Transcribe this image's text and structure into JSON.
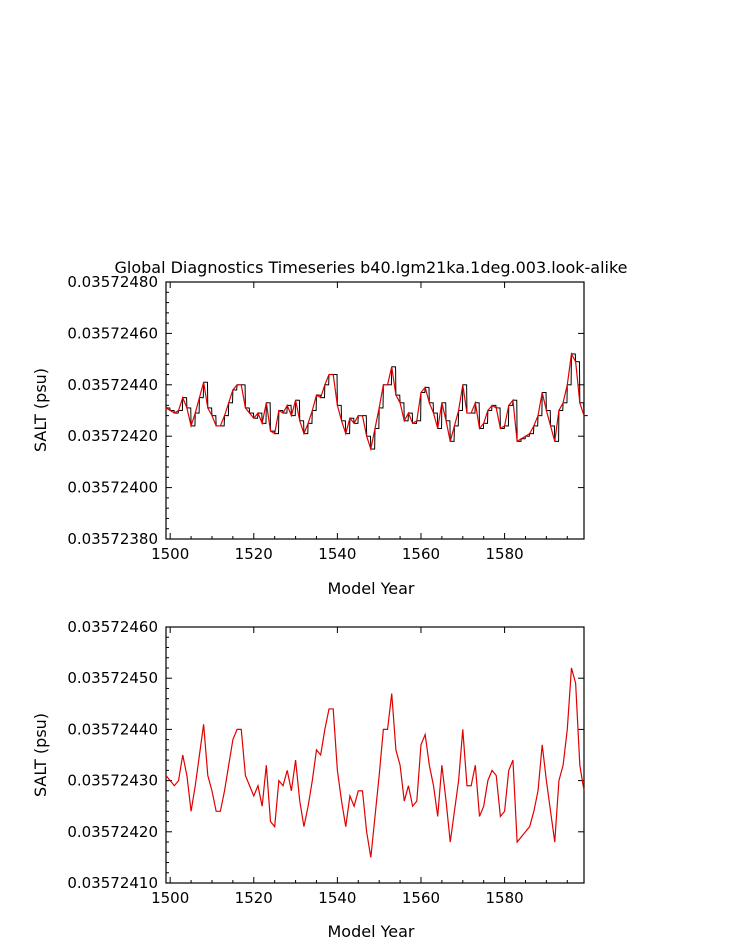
{
  "title": "Global Diagnostics Timeseries b40.lgm21ka.1deg.003.look-alike",
  "chart_data": [
    {
      "type": "line",
      "xlabel": "Model Year",
      "ylabel": "SALT (psu)",
      "xlim": [
        1499,
        1599
      ],
      "ylim": [
        0.0357238,
        0.0357248
      ],
      "xticks": [
        "1500",
        "1520",
        "1540",
        "1560",
        "1580"
      ],
      "yticks": [
        "0.03572380",
        "0.03572400",
        "0.03572420",
        "0.03572440",
        "0.03572460",
        "0.03572480"
      ],
      "series": [
        {
          "color": "#000000",
          "note_unit": "ppb offset from 0.0357238",
          "x_start": 1499,
          "x_step": 0.0833,
          "values_offset_1e-10": []
        },
        {
          "color": "#e00000",
          "x": [
            1499,
            1500,
            1501,
            1502,
            1503,
            1504,
            1505,
            1506,
            1507,
            1508,
            1509,
            1510,
            1511,
            1512,
            1513,
            1514,
            1515,
            1516,
            1517,
            1518,
            1519,
            1520,
            1521,
            1522,
            1523,
            1524,
            1525,
            1526,
            1527,
            1528,
            1529,
            1530,
            1531,
            1532,
            1533,
            1534,
            1535,
            1536,
            1537,
            1538,
            1539,
            1540,
            1541,
            1542,
            1543,
            1544,
            1545,
            1546,
            1547,
            1548,
            1549,
            1550,
            1551,
            1552,
            1553,
            1554,
            1555,
            1556,
            1557,
            1558,
            1559,
            1560,
            1561,
            1562,
            1563,
            1564,
            1565,
            1566,
            1567,
            1568,
            1569,
            1570,
            1571,
            1572,
            1573,
            1574,
            1575,
            1576,
            1577,
            1578,
            1579,
            1580,
            1581,
            1582,
            1583,
            1584,
            1585,
            1586,
            1587,
            1588,
            1589,
            1590,
            1591,
            1592,
            1593,
            1594,
            1595,
            1596,
            1597,
            1598,
            1599
          ],
          "y": [
            0.03572431,
            0.0357243,
            0.03572429,
            0.0357243,
            0.03572435,
            0.03572431,
            0.03572424,
            0.03572429,
            0.03572435,
            0.03572441,
            0.03572431,
            0.03572428,
            0.03572424,
            0.03572424,
            0.03572428,
            0.03572433,
            0.03572438,
            0.0357244,
            0.0357244,
            0.03572431,
            0.03572429,
            0.03572427,
            0.03572429,
            0.03572425,
            0.03572433,
            0.03572422,
            0.03572421,
            0.0357243,
            0.03572429,
            0.03572432,
            0.03572428,
            0.03572434,
            0.03572426,
            0.03572421,
            0.03572425,
            0.0357243,
            0.03572436,
            0.03572435,
            0.0357244,
            0.03572444,
            0.03572444,
            0.03572432,
            0.03572426,
            0.03572421,
            0.03572427,
            0.03572425,
            0.03572428,
            0.03572428,
            0.0357242,
            0.03572415,
            0.03572423,
            0.03572431,
            0.0357244,
            0.0357244,
            0.03572447,
            0.03572436,
            0.03572433,
            0.03572426,
            0.03572429,
            0.03572425,
            0.03572426,
            0.03572437,
            0.03572439,
            0.03572433,
            0.03572429,
            0.03572423,
            0.03572433,
            0.03572426,
            0.03572418,
            0.03572424,
            0.0357243,
            0.0357244,
            0.03572429,
            0.03572429,
            0.03572433,
            0.03572423,
            0.03572425,
            0.0357243,
            0.03572432,
            0.03572431,
            0.03572423,
            0.03572424,
            0.03572432,
            0.03572434,
            0.03572418,
            0.03572419,
            0.0357242,
            0.03572421,
            0.03572424,
            0.03572428,
            0.03572437,
            0.0357243,
            0.03572424,
            0.03572418,
            0.0357243,
            0.03572433,
            0.0357244,
            0.03572452,
            0.03572449,
            0.03572433,
            0.03572428
          ]
        }
      ]
    },
    {
      "type": "line",
      "xlabel": "Model Year",
      "ylabel": "SALT (psu)",
      "xlim": [
        1499,
        1599
      ],
      "ylim": [
        0.0357241,
        0.0357246
      ],
      "xticks": [
        "1500",
        "1520",
        "1540",
        "1560",
        "1580"
      ],
      "yticks": [
        "0.03572410",
        "0.03572420",
        "0.03572430",
        "0.03572440",
        "0.03572450",
        "0.03572460"
      ],
      "series": [
        {
          "color": "#e00000",
          "x": [
            1499,
            1500,
            1501,
            1502,
            1503,
            1504,
            1505,
            1506,
            1507,
            1508,
            1509,
            1510,
            1511,
            1512,
            1513,
            1514,
            1515,
            1516,
            1517,
            1518,
            1519,
            1520,
            1521,
            1522,
            1523,
            1524,
            1525,
            1526,
            1527,
            1528,
            1529,
            1530,
            1531,
            1532,
            1533,
            1534,
            1535,
            1536,
            1537,
            1538,
            1539,
            1540,
            1541,
            1542,
            1543,
            1544,
            1545,
            1546,
            1547,
            1548,
            1549,
            1550,
            1551,
            1552,
            1553,
            1554,
            1555,
            1556,
            1557,
            1558,
            1559,
            1560,
            1561,
            1562,
            1563,
            1564,
            1565,
            1566,
            1567,
            1568,
            1569,
            1570,
            1571,
            1572,
            1573,
            1574,
            1575,
            1576,
            1577,
            1578,
            1579,
            1580,
            1581,
            1582,
            1583,
            1584,
            1585,
            1586,
            1587,
            1588,
            1589,
            1590,
            1591,
            1592,
            1593,
            1594,
            1595,
            1596,
            1597,
            1598,
            1599
          ],
          "y": [
            0.03572431,
            0.0357243,
            0.03572429,
            0.0357243,
            0.03572435,
            0.03572431,
            0.03572424,
            0.03572429,
            0.03572435,
            0.03572441,
            0.03572431,
            0.03572428,
            0.03572424,
            0.03572424,
            0.03572428,
            0.03572433,
            0.03572438,
            0.0357244,
            0.0357244,
            0.03572431,
            0.03572429,
            0.03572427,
            0.03572429,
            0.03572425,
            0.03572433,
            0.03572422,
            0.03572421,
            0.0357243,
            0.03572429,
            0.03572432,
            0.03572428,
            0.03572434,
            0.03572426,
            0.03572421,
            0.03572425,
            0.0357243,
            0.03572436,
            0.03572435,
            0.0357244,
            0.03572444,
            0.03572444,
            0.03572432,
            0.03572426,
            0.03572421,
            0.03572427,
            0.03572425,
            0.03572428,
            0.03572428,
            0.0357242,
            0.03572415,
            0.03572423,
            0.03572431,
            0.0357244,
            0.0357244,
            0.03572447,
            0.03572436,
            0.03572433,
            0.03572426,
            0.03572429,
            0.03572425,
            0.03572426,
            0.03572437,
            0.03572439,
            0.03572433,
            0.03572429,
            0.03572423,
            0.03572433,
            0.03572426,
            0.03572418,
            0.03572424,
            0.0357243,
            0.0357244,
            0.03572429,
            0.03572429,
            0.03572433,
            0.03572423,
            0.03572425,
            0.0357243,
            0.03572432,
            0.03572431,
            0.03572423,
            0.03572424,
            0.03572432,
            0.03572434,
            0.03572418,
            0.03572419,
            0.0357242,
            0.03572421,
            0.03572424,
            0.03572428,
            0.03572437,
            0.0357243,
            0.03572424,
            0.03572418,
            0.0357243,
            0.03572433,
            0.0357244,
            0.03572452,
            0.03572449,
            0.03572433,
            0.03572428
          ]
        }
      ]
    }
  ]
}
